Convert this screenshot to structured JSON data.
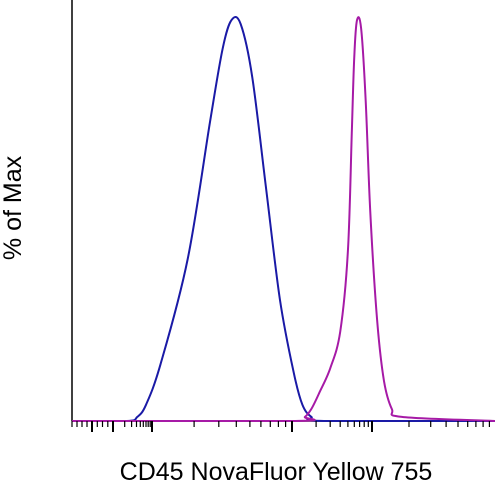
{
  "chart_data": {
    "type": "line",
    "title": "",
    "xlabel": "CD45 NovaFluor Yellow 755",
    "ylabel": "% of Max",
    "x_scale": "log",
    "xlim": [
      -100,
      1000000
    ],
    "ylim": [
      0,
      100
    ],
    "grid": false,
    "legend": "none",
    "series": [
      {
        "color": "#1a1aa6",
        "x": [
          -100,
          230,
          420,
          700,
          1150,
          1800,
          2600,
          3200,
          3700,
          4300,
          5200,
          6500,
          8200,
          10500,
          13500,
          17500,
          25000,
          1000000
        ],
        "y": [
          0,
          0,
          1,
          4,
          14,
          40,
          74,
          92,
          99,
          98,
          85,
          58,
          30,
          12,
          4,
          1,
          0,
          0
        ]
      },
      {
        "color": "#a61aa6",
        "x": [
          -100,
          11000,
          14500,
          17500,
          22000,
          30000,
          40000,
          50000,
          56000,
          60000,
          65000,
          73000,
          83000,
          95000,
          110000,
          125000,
          145000,
          175000,
          1000000
        ],
        "y": [
          0,
          0,
          1,
          3,
          7,
          13,
          22,
          42,
          72,
          90,
          99,
          97,
          80,
          52,
          25,
          10,
          3,
          1,
          0
        ]
      }
    ]
  }
}
